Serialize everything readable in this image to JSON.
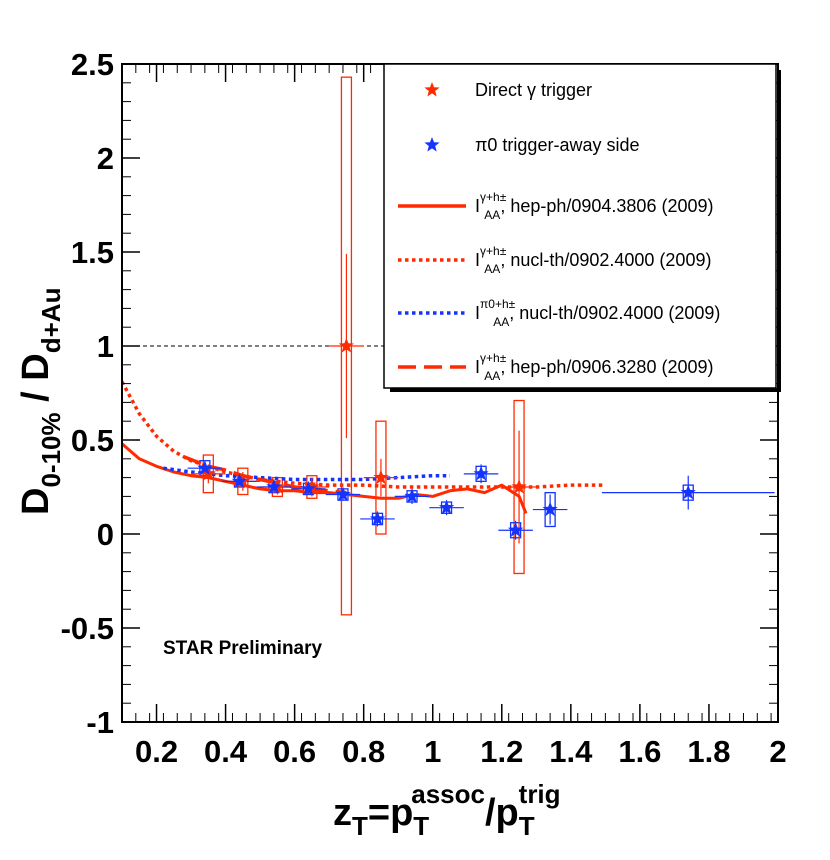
{
  "chart_data": {
    "type": "scatter",
    "annotation": "STAR Preliminary",
    "xlabel": {
      "base": "z",
      "sub": "T",
      "eq": "=p",
      "sub2": "T",
      "sup2": "assoc",
      "slash": "/p",
      "sub3": "T",
      "sup3": "trig"
    },
    "ylabel": {
      "lead": "D",
      "sub1": "0-10%",
      "mid": " / D",
      "sub2": "d+Au"
    },
    "xlim": [
      0.1,
      2.0
    ],
    "ylim": [
      -1.0,
      2.5
    ],
    "x_ticks": [
      "0.2",
      "0.4",
      "0.6",
      "0.8",
      "1",
      "1.2",
      "1.4",
      "1.6",
      "1.8",
      "2"
    ],
    "x_tick_values": [
      0.2,
      0.4,
      0.6,
      0.8,
      1.0,
      1.2,
      1.4,
      1.6,
      1.8,
      2.0
    ],
    "y_ticks": [
      "-1",
      "-0.5",
      "0",
      "0.5",
      "1",
      "1.5",
      "2",
      "2.5"
    ],
    "y_tick_values": [
      -1.0,
      -0.5,
      0.0,
      0.5,
      1.0,
      1.5,
      2.0,
      2.5
    ],
    "reference_line_y": 1.0,
    "colors": {
      "red": "#ff2a00",
      "blue": "#1433ff",
      "black": "#000000"
    },
    "series": [
      {
        "name": "Direct γ trigger",
        "color": "#ff2a00",
        "points": [
          {
            "x": 0.35,
            "y": 0.32,
            "xerr": 0.05,
            "yerr": 0.05,
            "sys": 0.1
          },
          {
            "x": 0.45,
            "y": 0.28,
            "xerr": 0.05,
            "yerr": 0.05,
            "sys": 0.07
          },
          {
            "x": 0.55,
            "y": 0.25,
            "xerr": 0.05,
            "yerr": 0.04,
            "sys": 0.05
          },
          {
            "x": 0.65,
            "y": 0.25,
            "xerr": 0.05,
            "yerr": 0.05,
            "sys": 0.06
          },
          {
            "x": 0.75,
            "y": 1.0,
            "xerr": 0.05,
            "yerr": 0.49,
            "sys": 1.43
          },
          {
            "x": 0.85,
            "y": 0.3,
            "xerr": 0.05,
            "yerr": 0.1,
            "sys": 0.3
          },
          {
            "x": 1.25,
            "y": 0.25,
            "xerr": 0.05,
            "yerr": 0.3,
            "sys": 0.46
          }
        ]
      },
      {
        "name": "π0 trigger-away side",
        "color": "#1433ff",
        "points": [
          {
            "x": 0.34,
            "y": 0.35,
            "xerr": 0.05,
            "yerr": 0.03,
            "sys": 0.04
          },
          {
            "x": 0.44,
            "y": 0.28,
            "xerr": 0.05,
            "yerr": 0.03,
            "sys": 0.03
          },
          {
            "x": 0.54,
            "y": 0.25,
            "xerr": 0.05,
            "yerr": 0.03,
            "sys": 0.03
          },
          {
            "x": 0.64,
            "y": 0.24,
            "xerr": 0.05,
            "yerr": 0.03,
            "sys": 0.03
          },
          {
            "x": 0.74,
            "y": 0.21,
            "xerr": 0.05,
            "yerr": 0.03,
            "sys": 0.03
          },
          {
            "x": 0.84,
            "y": 0.08,
            "xerr": 0.05,
            "yerr": 0.04,
            "sys": 0.03
          },
          {
            "x": 0.94,
            "y": 0.2,
            "xerr": 0.05,
            "yerr": 0.04,
            "sys": 0.03
          },
          {
            "x": 1.04,
            "y": 0.14,
            "xerr": 0.05,
            "yerr": 0.04,
            "sys": 0.03
          },
          {
            "x": 1.14,
            "y": 0.32,
            "xerr": 0.05,
            "yerr": 0.05,
            "sys": 0.04
          },
          {
            "x": 1.24,
            "y": 0.02,
            "xerr": 0.05,
            "yerr": 0.05,
            "sys": 0.04
          },
          {
            "x": 1.34,
            "y": 0.13,
            "xerr": 0.05,
            "yerr": 0.08,
            "sys": 0.09
          },
          {
            "x": 1.74,
            "y": 0.22,
            "xerr": 0.25,
            "yerr": 0.09,
            "sys": 0.04
          }
        ]
      }
    ],
    "curves": [
      {
        "name": "hep-ph/0904.3806 (2009)",
        "style": "solid",
        "color": "#ff2a00",
        "x": [
          0.1,
          0.15,
          0.2,
          0.25,
          0.3,
          0.35,
          0.4,
          0.45,
          0.5,
          0.55,
          0.6,
          0.65,
          0.7,
          0.75,
          0.8,
          0.85,
          0.9,
          0.95,
          1.0,
          1.05,
          1.1,
          1.15,
          1.2,
          1.25,
          1.27
        ],
        "y": [
          0.48,
          0.4,
          0.36,
          0.33,
          0.31,
          0.3,
          0.28,
          0.26,
          0.24,
          0.23,
          0.23,
          0.22,
          0.22,
          0.21,
          0.2,
          0.19,
          0.19,
          0.21,
          0.2,
          0.23,
          0.24,
          0.22,
          0.26,
          0.2,
          0.11
        ]
      },
      {
        "name": "nucl-th/0902.4000 (2009)",
        "style": "dotted",
        "color": "#ff2a00",
        "x": [
          0.1,
          0.15,
          0.2,
          0.25,
          0.3,
          0.35,
          0.4,
          0.5,
          0.6,
          0.7,
          0.8,
          0.9,
          1.0,
          1.1,
          1.2,
          1.3,
          1.4,
          1.5
        ],
        "y": [
          0.81,
          0.64,
          0.52,
          0.44,
          0.39,
          0.36,
          0.33,
          0.29,
          0.27,
          0.26,
          0.26,
          0.25,
          0.25,
          0.25,
          0.25,
          0.25,
          0.26,
          0.26
        ]
      },
      {
        "name": "nucl-th/0902.4000 (2009)",
        "style": "dotted",
        "color": "#1433ff",
        "x": [
          0.22,
          0.3,
          0.4,
          0.5,
          0.6,
          0.7,
          0.8,
          0.9,
          1.0,
          1.05
        ],
        "y": [
          0.35,
          0.33,
          0.31,
          0.3,
          0.29,
          0.29,
          0.29,
          0.3,
          0.31,
          0.31
        ]
      },
      {
        "name": "hep-ph/0906.3280 (2009)",
        "style": "dashed",
        "color": "#ff2a00",
        "x": [
          0.28,
          0.35,
          0.4,
          0.45,
          0.5,
          0.55,
          0.6,
          0.65,
          0.7,
          0.75
        ],
        "y": [
          0.41,
          0.36,
          0.34,
          0.31,
          0.29,
          0.27,
          0.25,
          0.24,
          0.23,
          0.22
        ]
      }
    ],
    "legend": {
      "placement": "top-right",
      "entries": [
        {
          "kind": "marker",
          "color": "#ff2a00",
          "text": "Direct γ trigger"
        },
        {
          "kind": "marker",
          "color": "#1433ff",
          "text": "π0 trigger-away side"
        },
        {
          "kind": "line",
          "style": "solid",
          "color": "#ff2a00",
          "sym": "I",
          "sup": "γ+h±",
          "sub": "AA",
          "text": ", hep-ph/0904.3806 (2009)"
        },
        {
          "kind": "line",
          "style": "dotted",
          "color": "#ff2a00",
          "sym": "I",
          "sup": "γ+h±",
          "sub": "AA",
          "text": ", nucl-th/0902.4000 (2009)"
        },
        {
          "kind": "line",
          "style": "dotted",
          "color": "#1433ff",
          "sym": "I",
          "sup": "π0+h±",
          "sub": "AA",
          "text": ", nucl-th/0902.4000 (2009)"
        },
        {
          "kind": "line",
          "style": "dashed",
          "color": "#ff2a00",
          "sym": "I",
          "sup": "γ+h±",
          "sub": "AA",
          "text": ", hep-ph/0906.3280 (2009)"
        }
      ]
    }
  }
}
